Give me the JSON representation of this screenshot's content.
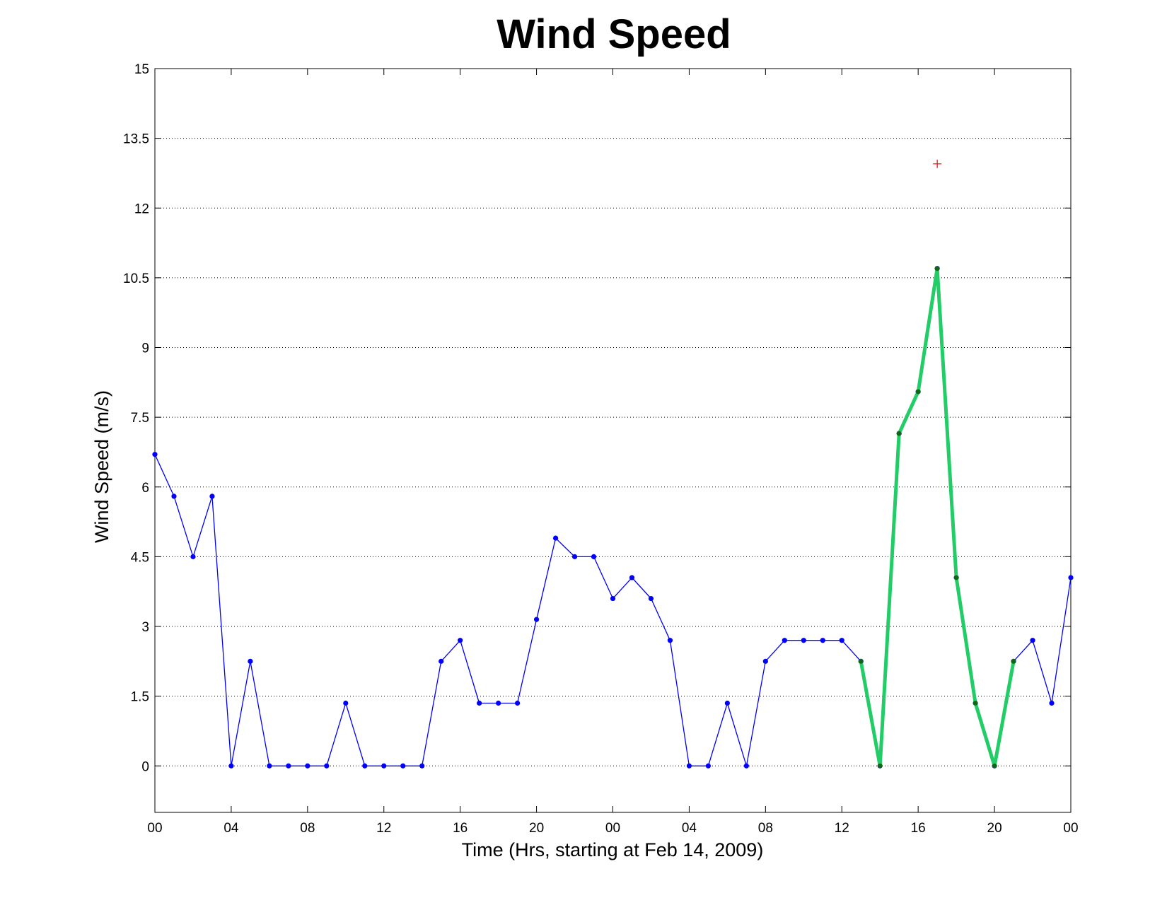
{
  "chart_data": {
    "type": "line",
    "title": "Wind Speed",
    "xlabel": "Time (Hrs, starting at Feb 14, 2009)",
    "ylabel": "Wind Speed (m/s)",
    "xlim": [
      0,
      48
    ],
    "ylim": [
      -1,
      15
    ],
    "grid": "y-dotted",
    "x_tick_positions": [
      0,
      4,
      8,
      12,
      16,
      20,
      24,
      28,
      32,
      36,
      40,
      44,
      48
    ],
    "x_tick_labels": [
      "00",
      "04",
      "08",
      "12",
      "16",
      "20",
      "00",
      "04",
      "08",
      "12",
      "16",
      "20",
      "00"
    ],
    "y_ticks": [
      0,
      1.5,
      3,
      4.5,
      6,
      7.5,
      9,
      10.5,
      12,
      13.5,
      15
    ],
    "y_tick_labels": [
      "0",
      "1.5",
      "3",
      "4.5",
      "6",
      "7.5",
      "9",
      "10.5",
      "12",
      "13.5",
      "15"
    ],
    "series": [
      {
        "color": "#0000ff",
        "marker": "dot",
        "x": [
          0,
          1,
          2,
          3,
          4,
          5,
          6,
          7,
          8,
          9,
          10,
          11,
          12,
          13,
          14,
          15,
          16,
          17,
          18,
          19,
          20,
          21,
          22,
          23,
          24,
          25,
          26,
          27,
          28,
          29,
          30,
          31,
          32,
          33,
          34,
          35,
          36,
          37,
          38,
          39,
          40,
          41,
          42,
          43,
          44,
          45,
          46,
          47,
          48
        ],
        "values": [
          6.7,
          5.8,
          4.5,
          5.8,
          0,
          2.25,
          0,
          0,
          0,
          0,
          1.35,
          0,
          0,
          0,
          0,
          2.25,
          2.7,
          1.35,
          1.35,
          1.35,
          3.15,
          4.9,
          4.5,
          4.5,
          3.6,
          4.05,
          3.6,
          2.7,
          0,
          0,
          1.35,
          0,
          2.25,
          2.7,
          2.7,
          2.7,
          2.7,
          2.25,
          0,
          7.15,
          8.05,
          10.7,
          4.05,
          1.35,
          0,
          2.25,
          2.7,
          1.35,
          4.05
        ]
      },
      {
        "color": "#22cc66",
        "marker_color": "#116611",
        "marker": "dot",
        "x": [
          37,
          38,
          39,
          40,
          41,
          42,
          43,
          44,
          45
        ],
        "values": [
          2.25,
          0,
          7.15,
          8.05,
          10.7,
          4.05,
          1.35,
          0,
          2.25
        ]
      }
    ],
    "annotations": [
      {
        "type": "marker",
        "symbol": "+",
        "color": "#ff0000",
        "x": 41,
        "y": 12.95
      }
    ]
  }
}
